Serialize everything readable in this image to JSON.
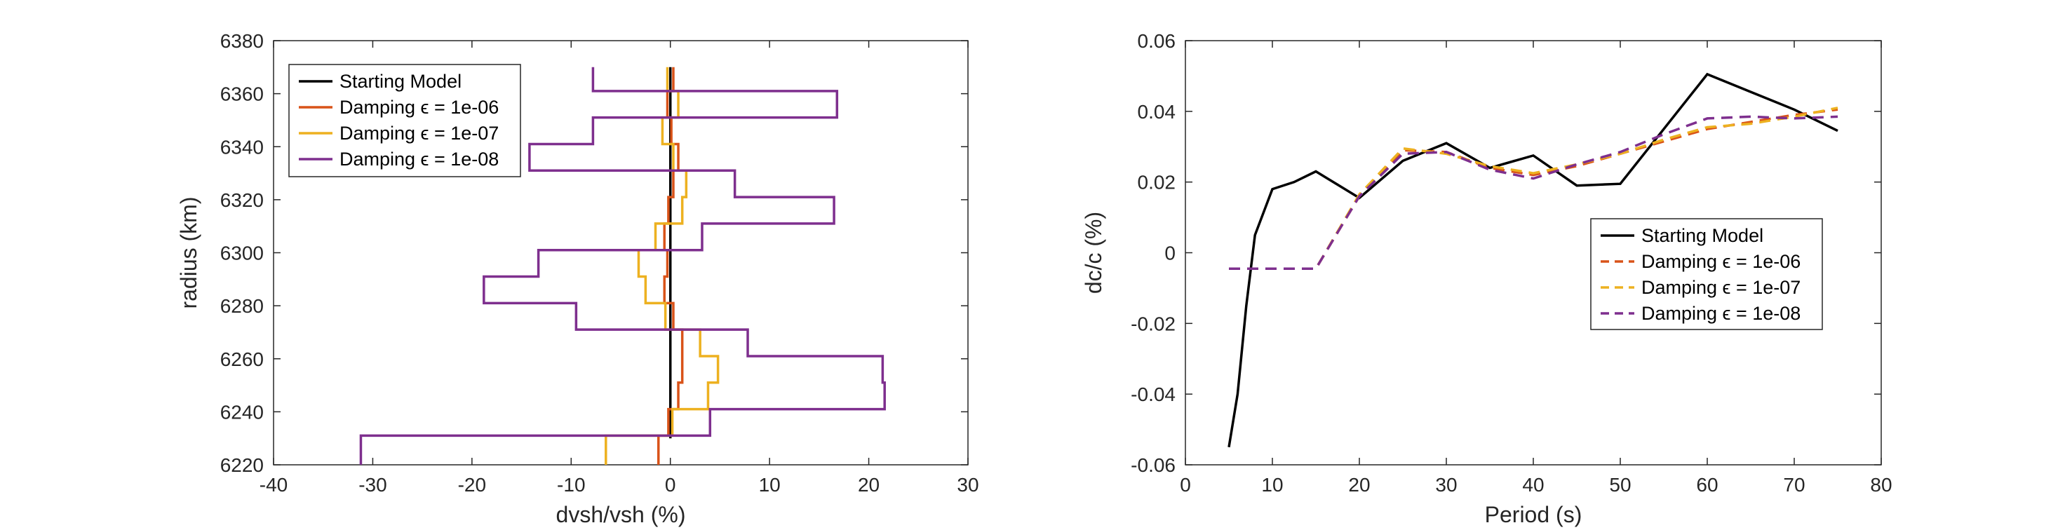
{
  "chart_data": [
    {
      "type": "line",
      "orientation": "vertical-profile",
      "xlabel": "dvsh/vsh (%)",
      "ylabel": "radius (km)",
      "xlim": [
        -40,
        30
      ],
      "ylim": [
        6220,
        6380
      ],
      "xticks": [
        "-40",
        "-30",
        "-20",
        "-10",
        "0",
        "10",
        "20",
        "30"
      ],
      "yticks": [
        "6220",
        "6240",
        "6260",
        "6280",
        "6300",
        "6320",
        "6340",
        "6360",
        "6380"
      ],
      "legend_position": "top-left",
      "grid": false,
      "series": [
        {
          "name": "Starting Model",
          "color": "#000000",
          "dash": "solid",
          "points": [
            [
              0,
              6370
            ],
            [
              0,
              6230
            ]
          ]
        },
        {
          "name": "Damping ϵ = 1e-06",
          "color": "#D95319",
          "dash": "solid",
          "points": [
            [
              0.3,
              6370
            ],
            [
              0.3,
              6361
            ],
            [
              -0.3,
              6361
            ],
            [
              -0.3,
              6351
            ],
            [
              0.1,
              6351
            ],
            [
              0.1,
              6341
            ],
            [
              0.8,
              6341
            ],
            [
              0.8,
              6331
            ],
            [
              0.3,
              6331
            ],
            [
              0.3,
              6321
            ],
            [
              -0.2,
              6321
            ],
            [
              -0.2,
              6311
            ],
            [
              -0.6,
              6311
            ],
            [
              -0.6,
              6301
            ],
            [
              -0.3,
              6301
            ],
            [
              -0.3,
              6291
            ],
            [
              -0.6,
              6291
            ],
            [
              -0.6,
              6281
            ],
            [
              0.3,
              6281
            ],
            [
              0.3,
              6271
            ],
            [
              1.2,
              6271
            ],
            [
              1.2,
              6261
            ],
            [
              1.2,
              6251
            ],
            [
              0.8,
              6251
            ],
            [
              0.8,
              6241
            ],
            [
              -0.2,
              6241
            ],
            [
              -0.2,
              6231
            ],
            [
              -1.2,
              6231
            ],
            [
              -1.2,
              6220
            ]
          ]
        },
        {
          "name": "Damping ϵ = 1e-07",
          "color": "#EDB120",
          "dash": "solid",
          "points": [
            [
              -0.3,
              6370
            ],
            [
              -0.3,
              6361
            ],
            [
              0.8,
              6361
            ],
            [
              0.8,
              6351
            ],
            [
              -0.8,
              6351
            ],
            [
              -0.8,
              6341
            ],
            [
              0.3,
              6341
            ],
            [
              0.3,
              6331
            ],
            [
              1.6,
              6331
            ],
            [
              1.6,
              6321
            ],
            [
              1.2,
              6321
            ],
            [
              1.2,
              6311
            ],
            [
              -1.5,
              6311
            ],
            [
              -1.5,
              6301
            ],
            [
              -3.2,
              6301
            ],
            [
              -3.2,
              6291
            ],
            [
              -2.5,
              6291
            ],
            [
              -2.5,
              6281
            ],
            [
              -0.5,
              6281
            ],
            [
              -0.5,
              6271
            ],
            [
              3.0,
              6271
            ],
            [
              3.0,
              6261
            ],
            [
              4.8,
              6261
            ],
            [
              4.8,
              6251
            ],
            [
              3.8,
              6251
            ],
            [
              3.8,
              6241
            ],
            [
              0.2,
              6241
            ],
            [
              0.2,
              6231
            ],
            [
              -6.5,
              6231
            ],
            [
              -6.5,
              6220
            ]
          ]
        },
        {
          "name": "Damping ϵ = 1e-08",
          "color": "#7E2F8E",
          "dash": "solid",
          "points": [
            [
              -7.8,
              6370
            ],
            [
              -7.8,
              6361
            ],
            [
              16.8,
              6361
            ],
            [
              16.8,
              6351
            ],
            [
              -7.8,
              6351
            ],
            [
              -7.8,
              6341
            ],
            [
              -14.2,
              6341
            ],
            [
              -14.2,
              6331
            ],
            [
              6.5,
              6331
            ],
            [
              6.5,
              6321
            ],
            [
              16.5,
              6321
            ],
            [
              16.5,
              6311
            ],
            [
              3.2,
              6311
            ],
            [
              3.2,
              6301
            ],
            [
              -13.3,
              6301
            ],
            [
              -13.3,
              6291
            ],
            [
              -18.8,
              6291
            ],
            [
              -18.8,
              6281
            ],
            [
              -9.5,
              6281
            ],
            [
              -9.5,
              6271
            ],
            [
              7.8,
              6271
            ],
            [
              7.8,
              6261
            ],
            [
              21.4,
              6261
            ],
            [
              21.4,
              6251
            ],
            [
              21.6,
              6251
            ],
            [
              21.6,
              6241
            ],
            [
              4.0,
              6241
            ],
            [
              4.0,
              6231
            ],
            [
              -31.2,
              6231
            ],
            [
              -31.2,
              6220
            ]
          ]
        }
      ]
    },
    {
      "type": "line",
      "xlabel": "Period (s)",
      "ylabel": "dc/c (%)",
      "xlim": [
        0,
        80
      ],
      "ylim": [
        -0.06,
        0.06
      ],
      "xticks": [
        "0",
        "10",
        "20",
        "30",
        "40",
        "50",
        "60",
        "70",
        "80"
      ],
      "yticks": [
        "-0.06",
        "-0.04",
        "-0.02",
        "0",
        "0.02",
        "0.04",
        "0.06"
      ],
      "legend_position": "center-right",
      "grid": false,
      "series": [
        {
          "name": "Starting Model",
          "color": "#000000",
          "dash": "solid",
          "points": [
            [
              5,
              -0.055
            ],
            [
              6,
              -0.04
            ],
            [
              7,
              -0.015
            ],
            [
              8,
              0.005
            ],
            [
              10,
              0.018
            ],
            [
              12.5,
              0.02
            ],
            [
              15,
              0.023
            ],
            [
              20,
              0.0155
            ],
            [
              25,
              0.026
            ],
            [
              30,
              0.031
            ],
            [
              35,
              0.024
            ],
            [
              40,
              0.0275
            ],
            [
              45,
              0.019
            ],
            [
              50,
              0.0195
            ],
            [
              55,
              0.035
            ],
            [
              60,
              0.0505
            ],
            [
              65,
              0.0455
            ],
            [
              70,
              0.0405
            ],
            [
              75,
              0.0345
            ]
          ]
        },
        {
          "name": "Damping ϵ = 1e-06",
          "color": "#D95319",
          "dash": "dashed",
          "points": [
            [
              5,
              -0.0045
            ],
            [
              10,
              -0.0045
            ],
            [
              15,
              -0.0045
            ],
            [
              20,
              0.016
            ],
            [
              25,
              0.029
            ],
            [
              30,
              0.0285
            ],
            [
              35,
              0.024
            ],
            [
              40,
              0.022
            ],
            [
              45,
              0.0245
            ],
            [
              50,
              0.028
            ],
            [
              55,
              0.0315
            ],
            [
              60,
              0.035
            ],
            [
              65,
              0.037
            ],
            [
              70,
              0.039
            ],
            [
              75,
              0.0405
            ]
          ]
        },
        {
          "name": "Damping ϵ = 1e-07",
          "color": "#EDB120",
          "dash": "dashed",
          "points": [
            [
              5,
              -0.0045
            ],
            [
              10,
              -0.0045
            ],
            [
              15,
              -0.0045
            ],
            [
              20,
              0.0165
            ],
            [
              25,
              0.0295
            ],
            [
              30,
              0.028
            ],
            [
              35,
              0.0245
            ],
            [
              40,
              0.0225
            ],
            [
              45,
              0.025
            ],
            [
              50,
              0.028
            ],
            [
              55,
              0.032
            ],
            [
              60,
              0.0355
            ],
            [
              65,
              0.0365
            ],
            [
              70,
              0.0385
            ],
            [
              75,
              0.041
            ]
          ]
        },
        {
          "name": "Damping ϵ = 1e-08",
          "color": "#7E2F8E",
          "dash": "dashed",
          "points": [
            [
              5,
              -0.0045
            ],
            [
              10,
              -0.0045
            ],
            [
              15,
              -0.0045
            ],
            [
              20,
              0.016
            ],
            [
              25,
              0.028
            ],
            [
              30,
              0.0285
            ],
            [
              35,
              0.0235
            ],
            [
              40,
              0.021
            ],
            [
              45,
              0.025
            ],
            [
              50,
              0.0285
            ],
            [
              55,
              0.0335
            ],
            [
              60,
              0.038
            ],
            [
              65,
              0.0385
            ],
            [
              70,
              0.038
            ],
            [
              75,
              0.0385
            ]
          ]
        }
      ]
    }
  ]
}
